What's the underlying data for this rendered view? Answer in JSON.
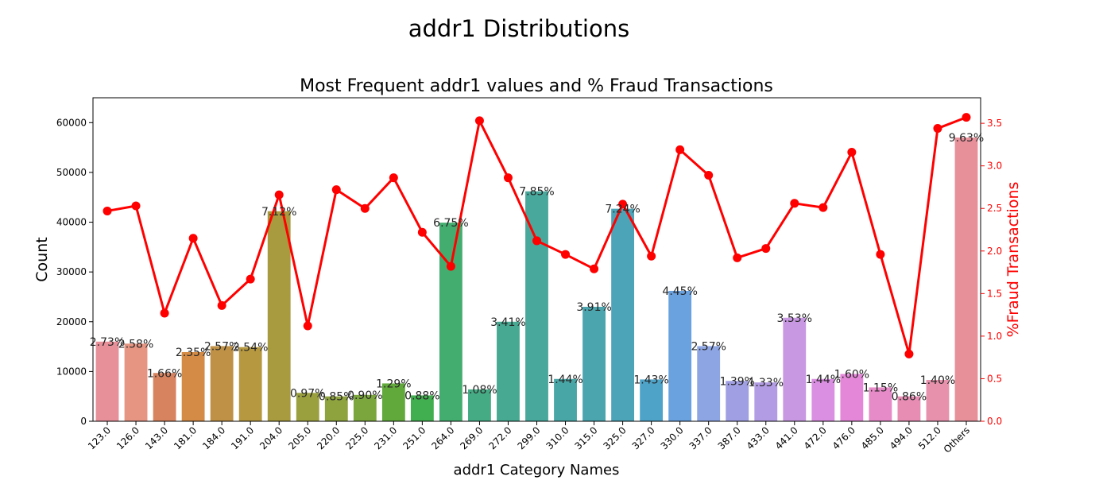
{
  "colors": {
    "line": "#ff0000",
    "right_axis": "#ff0000",
    "bars": [
      "#e8909a",
      "#e69582",
      "#d8835f",
      "#d48b45",
      "#bf9146",
      "#b69840",
      "#a89a3e",
      "#9ba03e",
      "#8ea23e",
      "#7ba53d",
      "#61a93b",
      "#41ae4f",
      "#43ad6f",
      "#45ab85",
      "#47a992",
      "#48a89c",
      "#49a6a6",
      "#4aa5ae",
      "#4ca4b8",
      "#4ea3c9",
      "#6aa1df",
      "#8da5e3",
      "#a09fe3",
      "#b29ce4",
      "#c898e2",
      "#da8fe2",
      "#e587d8",
      "#e68ac8",
      "#e78db3",
      "#e891ad"
    ]
  },
  "chart_data": {
    "type": "bar",
    "suptitle": "addr1 Distributions",
    "title": "Most Frequent addr1 values and % Fraud Transactions",
    "xlabel": "addr1 Category Names",
    "ylabel": "Count",
    "ylabel_right": "%Fraud Transactions",
    "ylim": [
      0,
      65000
    ],
    "ylim_right": [
      0,
      3.8
    ],
    "yticks": [
      0,
      10000,
      20000,
      30000,
      40000,
      50000,
      60000
    ],
    "yticks_right": [
      "0.0",
      "0.5",
      "1.0",
      "1.5",
      "2.0",
      "2.5",
      "3.0",
      "3.5"
    ],
    "categories": [
      "123.0",
      "126.0",
      "143.0",
      "181.0",
      "184.0",
      "191.0",
      "204.0",
      "205.0",
      "220.0",
      "225.0",
      "231.0",
      "251.0",
      "264.0",
      "269.0",
      "272.0",
      "299.0",
      "310.0",
      "315.0",
      "325.0",
      "327.0",
      "330.0",
      "337.0",
      "387.0",
      "433.0",
      "441.0",
      "472.0",
      "476.0",
      "485.0",
      "494.0",
      "512.0",
      "Others"
    ],
    "series": [
      {
        "values": [
          16000,
          15600,
          9700,
          13900,
          15100,
          14900,
          42200,
          5700,
          5000,
          5300,
          7600,
          5200,
          39900,
          6400,
          20000,
          46200,
          8500,
          23000,
          42700,
          8400,
          26200,
          15100,
          8100,
          7800,
          20800,
          8500,
          9500,
          6800,
          5000,
          8300,
          57000
        ],
        "labels": [
          "2.73%",
          "2.58%",
          "1.66%",
          "2.35%",
          "2.57%",
          "2.54%",
          "7.12%",
          "0.97%",
          "0.85%",
          "0.90%",
          "1.29%",
          "0.88%",
          "6.75%",
          "1.08%",
          "3.41%",
          "7.85%",
          "1.44%",
          "3.91%",
          "7.24%",
          "1.43%",
          "4.45%",
          "2.57%",
          "1.39%",
          "1.33%",
          "3.53%",
          "1.44%",
          "1.60%",
          "1.15%",
          "0.86%",
          "1.40%",
          "9.63%"
        ]
      },
      {
        "values": [
          2.47,
          2.53,
          1.27,
          2.15,
          1.36,
          1.67,
          2.66,
          1.12,
          2.72,
          2.5,
          2.86,
          2.22,
          1.82,
          3.53,
          2.86,
          2.12,
          1.96,
          1.79,
          2.55,
          1.94,
          3.19,
          2.89,
          1.92,
          2.03,
          2.56,
          2.51,
          3.16,
          1.96,
          0.79,
          3.44,
          3.57
        ]
      }
    ],
    "grid": false
  }
}
